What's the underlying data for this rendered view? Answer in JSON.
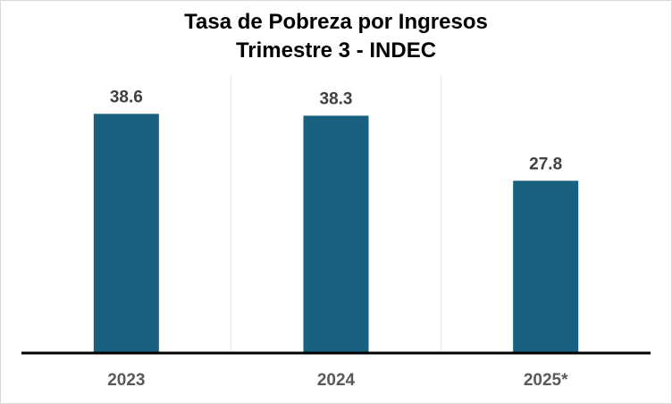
{
  "chart_data": {
    "type": "bar",
    "title": "Tasa de Pobreza por Ingresos",
    "subtitle": "Trimestre 3 - INDEC",
    "categories": [
      "2023",
      "2024",
      "2025*"
    ],
    "values": [
      38.6,
      38.3,
      27.8
    ],
    "data_labels": [
      "38.6",
      "38.3",
      "27.8"
    ],
    "xlabel": "",
    "ylabel": "",
    "ylim": [
      0,
      45
    ],
    "grid": "vertical separators",
    "legend": "none",
    "bar_color": "#17607f",
    "axis_color": "#000000"
  }
}
